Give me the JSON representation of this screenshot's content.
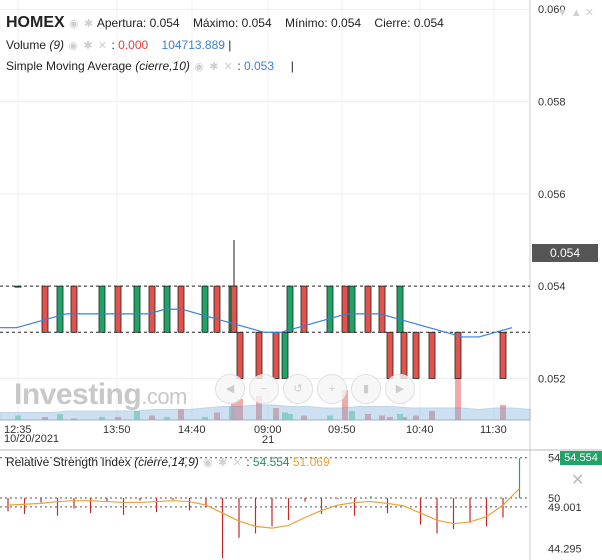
{
  "header": {
    "symbol": "HOMEX",
    "open_label": "Apertura:",
    "open_value": "0.054",
    "high_label": "Máximo:",
    "high_value": "0.054",
    "low_label": "Mínimo:",
    "low_value": "0.054",
    "close_label": "Cierre:",
    "close_value": "0.054"
  },
  "volume_legend": {
    "label": "Volume",
    "param": "(9)",
    "value1": "0.000",
    "value2": "104713.889"
  },
  "sma_legend": {
    "label": "Simple Moving Average",
    "param": "(cierre,10)",
    "value": "0.053"
  },
  "rsi_legend": {
    "label": "Relative Strength Index",
    "param": "(cierre,14,9)",
    "value1": "54.554",
    "value2": "51.069"
  },
  "watermark": {
    "main": "Investing",
    "suffix": ".com"
  },
  "current_price_label": "0.054",
  "rsi_current_label": "54.554",
  "icons": [
    "eye-icon",
    "gear-icon",
    "close-icon",
    "chevron-down-icon",
    "chevron-up-icon",
    "zoom-in-icon",
    "zoom-out-icon",
    "reset-icon"
  ],
  "chart_data": [
    {
      "type": "candlestick",
      "title": "HOMEX",
      "x_ticks": [
        "12:35",
        "13:50",
        "14:40",
        "09:00",
        "09:50",
        "10:40",
        "11:30"
      ],
      "x_date_labels": [
        "10/20/2021",
        "21"
      ],
      "y_ticks": [
        "0.060",
        "0.058",
        "0.056",
        "0.054",
        "0.052"
      ],
      "ylim": [
        0.0511,
        0.0602
      ],
      "candles": [
        {
          "o": 0.054,
          "c": 0.054,
          "h": 0.054,
          "l": 0.054
        },
        {
          "o": 0.054,
          "c": 0.053,
          "h": 0.054,
          "l": 0.053
        },
        {
          "o": 0.053,
          "c": 0.054,
          "h": 0.054,
          "l": 0.053
        },
        {
          "o": 0.054,
          "c": 0.053,
          "h": 0.054,
          "l": 0.053
        },
        {
          "o": 0.053,
          "c": 0.054,
          "h": 0.054,
          "l": 0.053
        },
        {
          "o": 0.054,
          "c": 0.053,
          "h": 0.054,
          "l": 0.053
        },
        {
          "o": 0.053,
          "c": 0.054,
          "h": 0.054,
          "l": 0.053
        },
        {
          "o": 0.054,
          "c": 0.053,
          "h": 0.054,
          "l": 0.053
        },
        {
          "o": 0.053,
          "c": 0.054,
          "h": 0.054,
          "l": 0.053
        },
        {
          "o": 0.054,
          "c": 0.053,
          "h": 0.054,
          "l": 0.053
        },
        {
          "o": 0.053,
          "c": 0.054,
          "h": 0.054,
          "l": 0.053
        },
        {
          "o": 0.054,
          "c": 0.053,
          "h": 0.054,
          "l": 0.053
        },
        {
          "o": 0.053,
          "c": 0.054,
          "h": 0.054,
          "l": 0.053
        },
        {
          "o": 0.054,
          "c": 0.053,
          "h": 0.055,
          "l": 0.053
        },
        {
          "o": 0.053,
          "c": 0.052,
          "h": 0.053,
          "l": 0.052
        },
        {
          "o": 0.053,
          "c": 0.052,
          "h": 0.053,
          "l": 0.052
        },
        {
          "o": 0.053,
          "c": 0.052,
          "h": 0.053,
          "l": 0.052
        },
        {
          "o": 0.052,
          "c": 0.053,
          "h": 0.053,
          "l": 0.052
        },
        {
          "o": 0.053,
          "c": 0.054,
          "h": 0.054,
          "l": 0.053
        },
        {
          "o": 0.054,
          "c": 0.053,
          "h": 0.054,
          "l": 0.053
        },
        {
          "o": 0.053,
          "c": 0.054,
          "h": 0.054,
          "l": 0.053
        },
        {
          "o": 0.054,
          "c": 0.053,
          "h": 0.054,
          "l": 0.053
        },
        {
          "o": 0.053,
          "c": 0.054,
          "h": 0.054,
          "l": 0.053
        },
        {
          "o": 0.054,
          "c": 0.053,
          "h": 0.054,
          "l": 0.053
        },
        {
          "o": 0.054,
          "c": 0.053,
          "h": 0.054,
          "l": 0.053
        },
        {
          "o": 0.053,
          "c": 0.052,
          "h": 0.053,
          "l": 0.052
        },
        {
          "o": 0.053,
          "c": 0.052,
          "h": 0.053,
          "l": 0.052
        },
        {
          "o": 0.053,
          "c": 0.052,
          "h": 0.053,
          "l": 0.052
        },
        {
          "o": 0.053,
          "c": 0.052,
          "h": 0.053,
          "l": 0.052
        },
        {
          "o": 0.053,
          "c": 0.052,
          "h": 0.053,
          "l": 0.052
        },
        {
          "o": 0.053,
          "c": 0.052,
          "h": 0.053,
          "l": 0.052
        },
        {
          "o": 0.053,
          "c": 0.054,
          "h": 0.054,
          "l": 0.053
        }
      ],
      "candle_x": [
        18,
        45,
        60,
        74,
        102,
        118,
        137,
        152,
        167,
        181,
        205,
        217,
        232,
        234,
        240,
        259,
        276,
        285,
        290,
        304,
        330,
        345,
        352,
        368,
        382,
        390,
        404,
        416,
        432,
        458,
        503,
        400
      ],
      "sma": [
        0.0531,
        0.0531,
        0.0532,
        0.0533,
        0.0534,
        0.0534,
        0.0534,
        0.0534,
        0.0534,
        0.0534,
        0.0535,
        0.0535,
        0.0534,
        0.0533,
        0.0532,
        0.0531,
        0.053,
        0.053,
        0.0531,
        0.0532,
        0.0533,
        0.0534,
        0.0534,
        0.0534,
        0.0533,
        0.0532,
        0.0531,
        0.053,
        0.0529,
        0.0529,
        0.053,
        0.0531
      ],
      "dotted_levels": [
        0.054,
        0.053
      ]
    },
    {
      "type": "bar",
      "title": "Volume",
      "values": [
        3,
        2,
        4,
        1,
        2,
        2,
        6,
        3,
        2,
        7,
        2,
        5,
        9,
        12,
        14,
        16,
        8,
        5,
        4,
        3,
        3,
        20,
        6,
        4,
        3,
        2,
        2,
        3,
        6,
        28,
        10,
        4
      ],
      "colors_up": "#8fe0b2",
      "colors_down": "#f0a0a0",
      "sma": [
        5,
        5,
        5,
        5,
        6,
        6,
        6,
        6,
        6,
        7,
        7,
        7,
        8,
        9,
        9,
        10,
        10,
        9,
        9,
        8,
        8,
        9,
        9,
        9,
        8,
        8,
        8,
        8,
        7,
        8,
        8,
        7
      ]
    },
    {
      "type": "line",
      "title": "Relative Strength Index",
      "y_ticks": [
        "54.554",
        "50",
        "49.001",
        "44.295"
      ],
      "ylim": [
        43,
        55.2
      ],
      "rsi_bars": [
        48.5,
        48.2,
        49.5,
        48.0,
        48.8,
        48.3,
        49.6,
        48.1,
        49.7,
        48.4,
        49.8,
        48.6,
        49.0,
        43.2,
        45.5,
        46.0,
        46.8,
        47.5,
        49.6,
        48.2,
        49.9,
        48.0,
        50.2,
        48.3,
        50.0,
        47.0,
        46.0,
        46.5,
        47.2,
        46.8,
        47.8,
        54.5
      ],
      "rsi_line": [
        49.2,
        49.3,
        49.4,
        49.6,
        49.7,
        49.7,
        49.6,
        49.5,
        49.5,
        49.6,
        49.7,
        49.6,
        49.2,
        48.3,
        47.4,
        46.8,
        46.6,
        46.9,
        47.8,
        48.6,
        49.2,
        49.5,
        49.6,
        49.4,
        49.1,
        48.3,
        47.5,
        47.1,
        47.3,
        47.9,
        49.2,
        51.07
      ],
      "reference_lines": [
        54.554,
        50,
        49.001
      ]
    }
  ]
}
